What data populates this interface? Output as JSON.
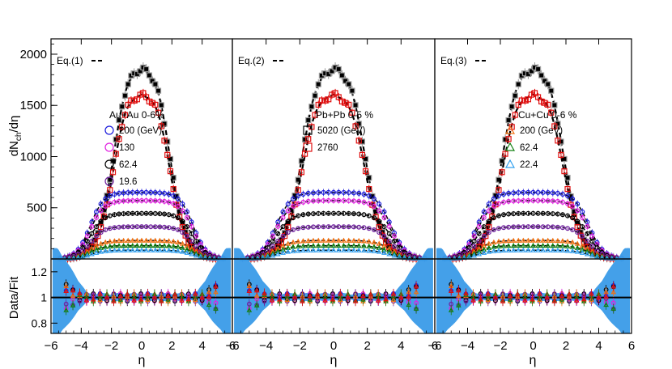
{
  "chart_data": [
    {
      "type": "scatter",
      "panel": "Au+Au",
      "eq_label": "Eq.(1)",
      "system_label": "Au+Au 0-6%",
      "legend_position": "left",
      "legend": [
        {
          "label": "200 (GeV)",
          "marker": "circle",
          "color": "#1a1adc"
        },
        {
          "label": "130",
          "marker": "circle",
          "color": "#e020e0"
        },
        {
          "label": "62.4",
          "marker": "circle",
          "color": "#000000"
        },
        {
          "label": "19.6",
          "marker": "circle",
          "color": "#7020a0"
        }
      ]
    },
    {
      "type": "scatter",
      "panel": "Pb+Pb",
      "eq_label": "Eq.(2)",
      "system_label": "Pb+Pb 0-5 %",
      "legend_position": "center",
      "legend": [
        {
          "label": "5020 (GeV)",
          "marker": "square",
          "color": "#000000"
        },
        {
          "label": "2760",
          "marker": "square",
          "color": "#e01010"
        }
      ]
    },
    {
      "type": "scatter",
      "panel": "Cu+Cu",
      "eq_label": "Eq.(3)",
      "system_label": "Cu+Cu 0-6 %",
      "legend_position": "center",
      "legend": [
        {
          "label": "200 (GeV)",
          "marker": "triangle",
          "color": "#f07010"
        },
        {
          "label": "62.4",
          "marker": "triangle",
          "color": "#108010"
        },
        {
          "label": "22.4",
          "marker": "triangle",
          "color": "#30a0f0"
        }
      ]
    }
  ],
  "axes": {
    "ylabel_top": "dN",
    "ylabel_sub": "ch",
    "ylabel_tail": "/dη",
    "ylabel_bottom": "Data/Fit",
    "xlabel": "η",
    "x_ticks": [
      "−6",
      "−4",
      "−2",
      "0",
      "2",
      "4",
      "6"
    ],
    "xlim": [
      -6,
      6
    ],
    "y_ticks_top": [
      "500",
      "1000",
      "1500",
      "2000"
    ],
    "ylim_top": [
      0,
      2150
    ],
    "y_ticks_bottom": [
      "0.8",
      "1",
      "1.2"
    ],
    "ylim_bottom": [
      0.72,
      1.3
    ]
  },
  "series": {
    "upper": [
      {
        "name": "5020 (GeV)",
        "height": 1940,
        "dip": 0.04,
        "plateau": 1.85,
        "decay": 0.55,
        "color": "#999999",
        "fill": "#000000",
        "marker": "square",
        "err": 50
      },
      {
        "name": "2760",
        "height": 1690,
        "dip": 0.05,
        "plateau": 1.85,
        "decay": 0.55,
        "color": "#e01010",
        "fill": "none",
        "marker": "square",
        "err": 40
      }
    ],
    "lower": [
      {
        "name": "200 (GeV) Au+Au",
        "height": 650,
        "color": "#1a1adc",
        "marker": "circle",
        "err": 35
      },
      {
        "name": "130",
        "height": 570,
        "color": "#e020e0",
        "marker": "circle",
        "err": 30
      },
      {
        "name": "62.4",
        "height": 445,
        "color": "#000000",
        "marker": "circle",
        "err": 25
      },
      {
        "name": "19.6",
        "height": 315,
        "color": "#7020a0",
        "marker": "circle",
        "err": 18
      },
      {
        "name": "200 (GeV) Cu+Cu",
        "height": 180,
        "color": "#f07010",
        "marker": "triangle",
        "err": 12
      },
      {
        "name": "62.4 Cu+Cu",
        "height": 130,
        "color": "#108010",
        "marker": "triangle",
        "err": 9
      },
      {
        "name": "22.4",
        "height": 85,
        "color": "#30a0f0",
        "marker": "triangle",
        "err": 6
      }
    ]
  },
  "style": {
    "fit_color": "#000000",
    "band_color": "#3a9be8"
  }
}
